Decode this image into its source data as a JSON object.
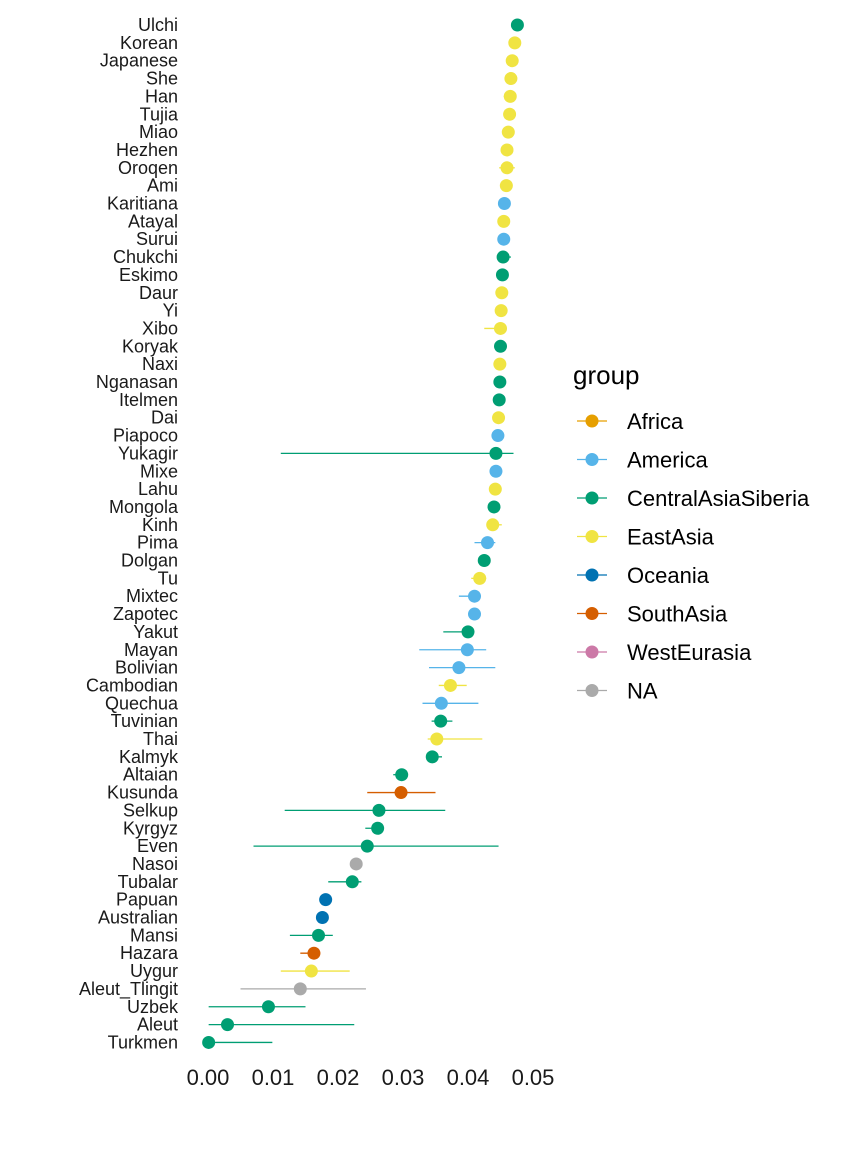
{
  "chart_data": {
    "type": "scatter",
    "subtype": "dot-errorbar",
    "xlabel": "",
    "ylabel": "",
    "xlim": [
      0.0,
      0.05
    ],
    "x_ticks": [
      "0.00",
      "0.01",
      "0.02",
      "0.03",
      "0.04",
      "0.05"
    ],
    "x_tick_values": [
      0.0,
      0.01,
      0.02,
      0.03,
      0.04,
      0.05
    ],
    "grid": false,
    "legend": {
      "title": "group",
      "position": "right",
      "entries": [
        {
          "label": "Africa",
          "color": "#E69F00"
        },
        {
          "label": "America",
          "color": "#56B4E9"
        },
        {
          "label": "CentralAsiaSiberia",
          "color": "#009E73"
        },
        {
          "label": "EastAsia",
          "color": "#F0E442"
        },
        {
          "label": "Oceania",
          "color": "#0072B2"
        },
        {
          "label": "SouthAsia",
          "color": "#D55E00"
        },
        {
          "label": "WestEurasia",
          "color": "#CC79A7"
        },
        {
          "label": "NA",
          "color": "#AAAAAA"
        }
      ]
    },
    "points": [
      {
        "pop": "Ulchi",
        "group": "CentralAsiaSiberia",
        "value": 0.0476,
        "lo": 0.0468,
        "hi": 0.0484
      },
      {
        "pop": "Korean",
        "group": "EastAsia",
        "value": 0.0472,
        "lo": 0.0466,
        "hi": 0.0478
      },
      {
        "pop": "Japanese",
        "group": "EastAsia",
        "value": 0.0468,
        "lo": 0.0462,
        "hi": 0.0474
      },
      {
        "pop": "She",
        "group": "EastAsia",
        "value": 0.0466,
        "lo": 0.0461,
        "hi": 0.0471
      },
      {
        "pop": "Han",
        "group": "EastAsia",
        "value": 0.0465,
        "lo": 0.0455,
        "hi": 0.0472
      },
      {
        "pop": "Tujia",
        "group": "EastAsia",
        "value": 0.0464,
        "lo": 0.0458,
        "hi": 0.047
      },
      {
        "pop": "Miao",
        "group": "EastAsia",
        "value": 0.0462,
        "lo": 0.0456,
        "hi": 0.0468
      },
      {
        "pop": "Hezhen",
        "group": "EastAsia",
        "value": 0.046,
        "lo": 0.0452,
        "hi": 0.0468
      },
      {
        "pop": "Oroqen",
        "group": "EastAsia",
        "value": 0.046,
        "lo": 0.0448,
        "hi": 0.0472
      },
      {
        "pop": "Ami",
        "group": "EastAsia",
        "value": 0.0459,
        "lo": 0.0454,
        "hi": 0.0464
      },
      {
        "pop": "Karitiana",
        "group": "America",
        "value": 0.0456,
        "lo": 0.045,
        "hi": 0.0462
      },
      {
        "pop": "Atayal",
        "group": "EastAsia",
        "value": 0.0455,
        "lo": 0.0449,
        "hi": 0.0461
      },
      {
        "pop": "Surui",
        "group": "America",
        "value": 0.0455,
        "lo": 0.0449,
        "hi": 0.0461
      },
      {
        "pop": "Chukchi",
        "group": "CentralAsiaSiberia",
        "value": 0.0454,
        "lo": 0.0446,
        "hi": 0.0466
      },
      {
        "pop": "Eskimo",
        "group": "CentralAsiaSiberia",
        "value": 0.0453,
        "lo": 0.0447,
        "hi": 0.0459
      },
      {
        "pop": "Daur",
        "group": "EastAsia",
        "value": 0.0452,
        "lo": 0.0446,
        "hi": 0.0458
      },
      {
        "pop": "Yi",
        "group": "EastAsia",
        "value": 0.0451,
        "lo": 0.0445,
        "hi": 0.0457
      },
      {
        "pop": "Xibo",
        "group": "EastAsia",
        "value": 0.045,
        "lo": 0.0425,
        "hi": 0.046
      },
      {
        "pop": "Koryak",
        "group": "CentralAsiaSiberia",
        "value": 0.045,
        "lo": 0.0444,
        "hi": 0.0456
      },
      {
        "pop": "Naxi",
        "group": "EastAsia",
        "value": 0.0449,
        "lo": 0.0443,
        "hi": 0.0455
      },
      {
        "pop": "Nganasan",
        "group": "CentralAsiaSiberia",
        "value": 0.0449,
        "lo": 0.0443,
        "hi": 0.0455
      },
      {
        "pop": "Itelmen",
        "group": "CentralAsiaSiberia",
        "value": 0.0448,
        "lo": 0.0442,
        "hi": 0.0454
      },
      {
        "pop": "Dai",
        "group": "EastAsia",
        "value": 0.0447,
        "lo": 0.0441,
        "hi": 0.0453
      },
      {
        "pop": "Piapoco",
        "group": "America",
        "value": 0.0446,
        "lo": 0.044,
        "hi": 0.0452
      },
      {
        "pop": "Yukagir",
        "group": "CentralAsiaSiberia",
        "value": 0.0443,
        "lo": 0.0112,
        "hi": 0.047
      },
      {
        "pop": "Mixe",
        "group": "America",
        "value": 0.0443,
        "lo": 0.0437,
        "hi": 0.0449
      },
      {
        "pop": "Lahu",
        "group": "EastAsia",
        "value": 0.0442,
        "lo": 0.0436,
        "hi": 0.0448
      },
      {
        "pop": "Mongola",
        "group": "CentralAsiaSiberia",
        "value": 0.044,
        "lo": 0.0434,
        "hi": 0.0446
      },
      {
        "pop": "Kinh",
        "group": "EastAsia",
        "value": 0.0438,
        "lo": 0.043,
        "hi": 0.0452
      },
      {
        "pop": "Pima",
        "group": "America",
        "value": 0.043,
        "lo": 0.041,
        "hi": 0.0442
      },
      {
        "pop": "Dolgan",
        "group": "CentralAsiaSiberia",
        "value": 0.0425,
        "lo": 0.0419,
        "hi": 0.0431
      },
      {
        "pop": "Tu",
        "group": "EastAsia",
        "value": 0.0418,
        "lo": 0.0405,
        "hi": 0.0428
      },
      {
        "pop": "Mixtec",
        "group": "America",
        "value": 0.041,
        "lo": 0.0386,
        "hi": 0.042
      },
      {
        "pop": "Zapotec",
        "group": "America",
        "value": 0.041,
        "lo": 0.0404,
        "hi": 0.0416
      },
      {
        "pop": "Yakut",
        "group": "CentralAsiaSiberia",
        "value": 0.04,
        "lo": 0.0362,
        "hi": 0.041
      },
      {
        "pop": "Mayan",
        "group": "America",
        "value": 0.0399,
        "lo": 0.0325,
        "hi": 0.0428
      },
      {
        "pop": "Bolivian",
        "group": "America",
        "value": 0.0386,
        "lo": 0.034,
        "hi": 0.0442
      },
      {
        "pop": "Cambodian",
        "group": "EastAsia",
        "value": 0.0373,
        "lo": 0.0355,
        "hi": 0.0398
      },
      {
        "pop": "Quechua",
        "group": "America",
        "value": 0.0359,
        "lo": 0.033,
        "hi": 0.0416
      },
      {
        "pop": "Tuvinian",
        "group": "CentralAsiaSiberia",
        "value": 0.0358,
        "lo": 0.0344,
        "hi": 0.0376
      },
      {
        "pop": "Thai",
        "group": "EastAsia",
        "value": 0.0352,
        "lo": 0.0338,
        "hi": 0.0422
      },
      {
        "pop": "Kalmyk",
        "group": "CentralAsiaSiberia",
        "value": 0.0345,
        "lo": 0.0336,
        "hi": 0.036
      },
      {
        "pop": "Altaian",
        "group": "CentralAsiaSiberia",
        "value": 0.0298,
        "lo": 0.0285,
        "hi": 0.0305
      },
      {
        "pop": "Kusunda",
        "group": "SouthAsia",
        "value": 0.0297,
        "lo": 0.0245,
        "hi": 0.035
      },
      {
        "pop": "Selkup",
        "group": "CentralAsiaSiberia",
        "value": 0.0263,
        "lo": 0.0118,
        "hi": 0.0365
      },
      {
        "pop": "Kyrgyz",
        "group": "CentralAsiaSiberia",
        "value": 0.0261,
        "lo": 0.0242,
        "hi": 0.027
      },
      {
        "pop": "Even",
        "group": "CentralAsiaSiberia",
        "value": 0.0245,
        "lo": 0.007,
        "hi": 0.0447
      },
      {
        "pop": "Nasoi",
        "group": "NA",
        "value": 0.0228,
        "lo": 0.0222,
        "hi": 0.0234
      },
      {
        "pop": "Tubalar",
        "group": "CentralAsiaSiberia",
        "value": 0.0222,
        "lo": 0.0185,
        "hi": 0.0236
      },
      {
        "pop": "Papuan",
        "group": "Oceania",
        "value": 0.0181,
        "lo": 0.0175,
        "hi": 0.0187
      },
      {
        "pop": "Australian",
        "group": "Oceania",
        "value": 0.0176,
        "lo": 0.017,
        "hi": 0.0182
      },
      {
        "pop": "Mansi",
        "group": "CentralAsiaSiberia",
        "value": 0.017,
        "lo": 0.0126,
        "hi": 0.0192
      },
      {
        "pop": "Hazara",
        "group": "SouthAsia",
        "value": 0.0163,
        "lo": 0.0142,
        "hi": 0.0172
      },
      {
        "pop": "Uygur",
        "group": "EastAsia",
        "value": 0.0159,
        "lo": 0.0112,
        "hi": 0.0218
      },
      {
        "pop": "Aleut_Tlingit",
        "group": "NA",
        "value": 0.0142,
        "lo": 0.005,
        "hi": 0.0243
      },
      {
        "pop": "Uzbek",
        "group": "CentralAsiaSiberia",
        "value": 0.0093,
        "lo": 0.0001,
        "hi": 0.015
      },
      {
        "pop": "Aleut",
        "group": "CentralAsiaSiberia",
        "value": 0.003,
        "lo": 0.0001,
        "hi": 0.0225
      },
      {
        "pop": "Turkmen",
        "group": "CentralAsiaSiberia",
        "value": 0.0001,
        "lo": 0.0001,
        "hi": 0.0099
      }
    ]
  }
}
